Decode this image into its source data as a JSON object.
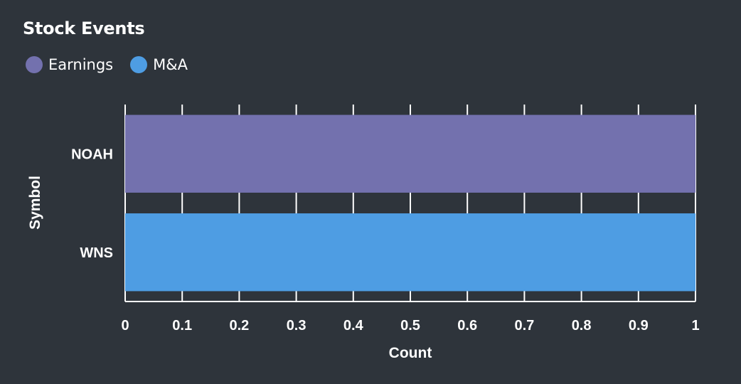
{
  "chart_data": {
    "type": "bar",
    "orientation": "horizontal",
    "title": "Stock Events",
    "xlabel": "Count",
    "ylabel": "Symbol",
    "xlim": [
      0,
      1
    ],
    "xticks": [
      "0",
      "0.1",
      "0.2",
      "0.3",
      "0.4",
      "0.5",
      "0.6",
      "0.7",
      "0.8",
      "0.9",
      "1"
    ],
    "categories": [
      "NOAH",
      "WNS"
    ],
    "series": [
      {
        "name": "Earnings",
        "color": "#7371ae",
        "values": [
          1,
          0
        ]
      },
      {
        "name": "M&A",
        "color": "#4e9de3",
        "values": [
          0,
          1
        ]
      }
    ],
    "grid": true,
    "legend_position": "top-left"
  }
}
